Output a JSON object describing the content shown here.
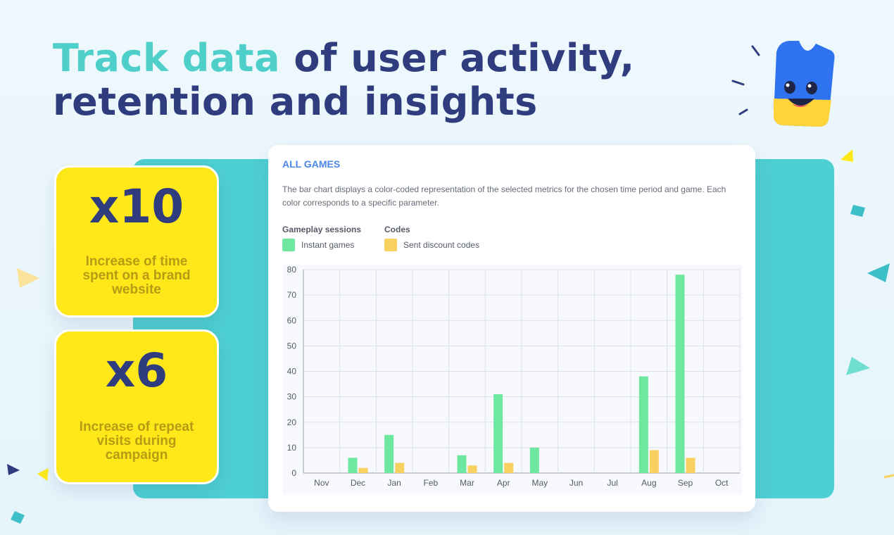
{
  "headline": {
    "accent": "Track data",
    "rest_line1": " of user activity,",
    "line2": "retention and insights"
  },
  "stats": [
    {
      "value": "x10",
      "description": "Increase of time spent on a brand website"
    },
    {
      "value": "x6",
      "description": "Increase of repeat visits during campaign"
    }
  ],
  "card": {
    "title": "ALL GAMES",
    "description": "The bar chart displays a color-coded representation of the selected metrics for the chosen time period and game. Each color corresponds to a specific parameter.",
    "legend": [
      {
        "group": "Gameplay sessions",
        "label": "Instant games",
        "color": "#6ee7a0"
      },
      {
        "group": "Codes",
        "label": "Sent discount codes",
        "color": "#f8d160"
      }
    ]
  },
  "colors": {
    "navy": "#2f3c7e",
    "accent_teal": "#4ecfc9",
    "panel_teal": "#4ecfd1",
    "card_yellow": "#ffe81a",
    "title_blue": "#4a86e8"
  },
  "chart_data": {
    "type": "bar",
    "categories": [
      "Nov",
      "Dec",
      "Jan",
      "Feb",
      "Mar",
      "Apr",
      "May",
      "Jun",
      "Jul",
      "Aug",
      "Sep",
      "Oct"
    ],
    "series": [
      {
        "name": "Instant games",
        "values": [
          0,
          6,
          15,
          0,
          7,
          31,
          10,
          0,
          0,
          38,
          78,
          0
        ],
        "color": "#6ee7a0"
      },
      {
        "name": "Sent discount codes",
        "values": [
          0,
          2,
          4,
          0,
          3,
          4,
          0,
          0,
          0,
          9,
          6,
          0
        ],
        "color": "#f8d160"
      }
    ],
    "yticks": [
      0,
      10,
      20,
      30,
      40,
      50,
      60,
      70,
      80
    ],
    "ylim": [
      0,
      80
    ],
    "grid": true
  }
}
